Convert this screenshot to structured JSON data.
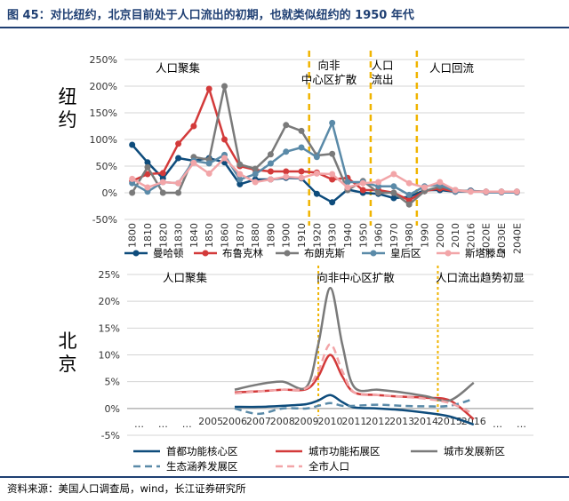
{
  "header": {
    "title": "图 45：对比纽约，北京目前处于人口流出的初期，也就类似纽约的 1950 年代"
  },
  "footer": {
    "source": "资料来源：美国人口调查局，wind，长江证券研究所"
  },
  "chart_data": [
    {
      "type": "line",
      "name": "纽约",
      "categories": [
        "1800",
        "1810",
        "1820",
        "1830",
        "1840",
        "1850",
        "1860",
        "1870",
        "1880",
        "1890",
        "1900",
        "1910",
        "1920",
        "1930",
        "1940",
        "1950",
        "1960",
        "1970",
        "1980",
        "1990",
        "2000",
        "2010",
        "2016",
        "2020E",
        "2030E",
        "2040E"
      ],
      "y_ticks": [
        "250%",
        "200%",
        "150%",
        "100%",
        "50%",
        "0%",
        "-50%"
      ],
      "ylim": [
        -50,
        250
      ],
      "phases": [
        {
          "label": "人口聚集"
        },
        {
          "label": "向非中心区扩散"
        },
        {
          "label": "人口流出"
        },
        {
          "label": "人口回流"
        }
      ],
      "phase_boundaries": [
        "1910",
        "1950",
        "1980"
      ],
      "series": [
        {
          "name": "曼哈顿",
          "color": "#0e4c7c",
          "values": [
            90,
            57,
            27,
            65,
            60,
            65,
            57,
            16,
            25,
            25,
            28,
            27,
            -2,
            -18,
            6,
            0,
            -2,
            -10,
            -8,
            5,
            5,
            2,
            4,
            1,
            1,
            1
          ]
        },
        {
          "name": "布鲁克林",
          "color": "#d33a3a",
          "values": [
            22,
            35,
            37,
            92,
            125,
            195,
            100,
            50,
            43,
            40,
            40,
            40,
            38,
            25,
            28,
            5,
            5,
            0,
            -14,
            3,
            8,
            2,
            3,
            2,
            2,
            2
          ]
        },
        {
          "name": "布朗克斯",
          "color": "#7a7a7a",
          "values": [
            0,
            48,
            0,
            0,
            67,
            62,
            200,
            53,
            45,
            72,
            127,
            116,
            70,
            73,
            5,
            22,
            0,
            0,
            -22,
            3,
            12,
            5,
            3,
            2,
            2,
            2
          ]
        },
        {
          "name": "皇后区",
          "color": "#5a8aa8",
          "values": [
            18,
            2,
            20,
            18,
            60,
            55,
            71,
            25,
            35,
            55,
            77,
            85,
            67,
            131,
            20,
            20,
            12,
            12,
            -4,
            12,
            15,
            2,
            3,
            2,
            2,
            2
          ]
        },
        {
          "name": "斯塔滕岛",
          "color": "#f2a5a8",
          "values": [
            26,
            10,
            20,
            18,
            56,
            36,
            65,
            35,
            20,
            25,
            30,
            28,
            36,
            35,
            10,
            18,
            20,
            35,
            18,
            10,
            20,
            5,
            2,
            2,
            2,
            2
          ]
        }
      ]
    },
    {
      "type": "line",
      "name": "北京",
      "categories": [
        "…",
        "…",
        "…",
        "2005",
        "2006",
        "2007",
        "2008",
        "2009",
        "2010",
        "2011",
        "2012",
        "2013",
        "2014",
        "2015",
        "2016",
        "…",
        "…"
      ],
      "y_ticks": [
        "25%",
        "20%",
        "15%",
        "10%",
        "5%",
        "0%",
        "-5%"
      ],
      "ylim": [
        -5,
        25
      ],
      "phases": [
        {
          "label": "人口聚集"
        },
        {
          "label": "向非中心区扩散"
        },
        {
          "label": "人口流出趋势初显"
        }
      ],
      "phase_boundaries": [
        "2009.5",
        "2014.5"
      ],
      "series": [
        {
          "name": "首都功能核心区",
          "color": "#0e4c7c",
          "dash": "solid",
          "x": [
            2006,
            2007,
            2008,
            2009,
            2009.5,
            2010,
            2010.5,
            2011,
            2012,
            2013,
            2014,
            2015,
            2016
          ],
          "values": [
            0.3,
            0.3,
            0.5,
            0.8,
            1.5,
            2.5,
            1.2,
            0.2,
            0,
            -0.3,
            -0.8,
            -1.5,
            -3
          ]
        },
        {
          "name": "城市功能拓展区",
          "color": "#d33a3a",
          "dash": "solid",
          "x": [
            2006,
            2007,
            2008,
            2009,
            2009.5,
            2010,
            2010.5,
            2011,
            2012,
            2013,
            2014,
            2015,
            2016
          ],
          "values": [
            3,
            3.2,
            3.5,
            3.6,
            6,
            10,
            6,
            3,
            2.5,
            2.2,
            2,
            1.5,
            -2
          ]
        },
        {
          "name": "城市发展新区",
          "color": "#7a7a7a",
          "dash": "solid",
          "x": [
            2006,
            2007,
            2008,
            2009,
            2009.5,
            2010,
            2010.5,
            2011,
            2012,
            2013,
            2014,
            2015,
            2016
          ],
          "values": [
            3.5,
            4.5,
            5,
            4,
            12,
            22.5,
            12,
            4,
            3.5,
            3,
            2.3,
            1.5,
            4.8
          ]
        },
        {
          "name": "生态涵养发展区",
          "color": "#5a8aa8",
          "dash": "dashed",
          "x": [
            2006,
            2007,
            2008,
            2009,
            2009.5,
            2010,
            2010.5,
            2011,
            2012,
            2013,
            2014,
            2015,
            2016
          ],
          "values": [
            0,
            -1,
            0,
            0,
            0.5,
            1,
            0.5,
            0.5,
            0.7,
            0.5,
            0.4,
            0.5,
            1.8
          ]
        },
        {
          "name": "全市人口",
          "color": "#f2a5a8",
          "dash": "dashed",
          "x": [
            2006,
            2007,
            2008,
            2009,
            2009.5,
            2010,
            2010.5,
            2011,
            2012,
            2013,
            2014,
            2015,
            2016
          ],
          "values": [
            2.8,
            3.2,
            3.5,
            3.8,
            7,
            12,
            7,
            3,
            2.5,
            2.2,
            1.8,
            1,
            -1
          ]
        }
      ]
    }
  ]
}
